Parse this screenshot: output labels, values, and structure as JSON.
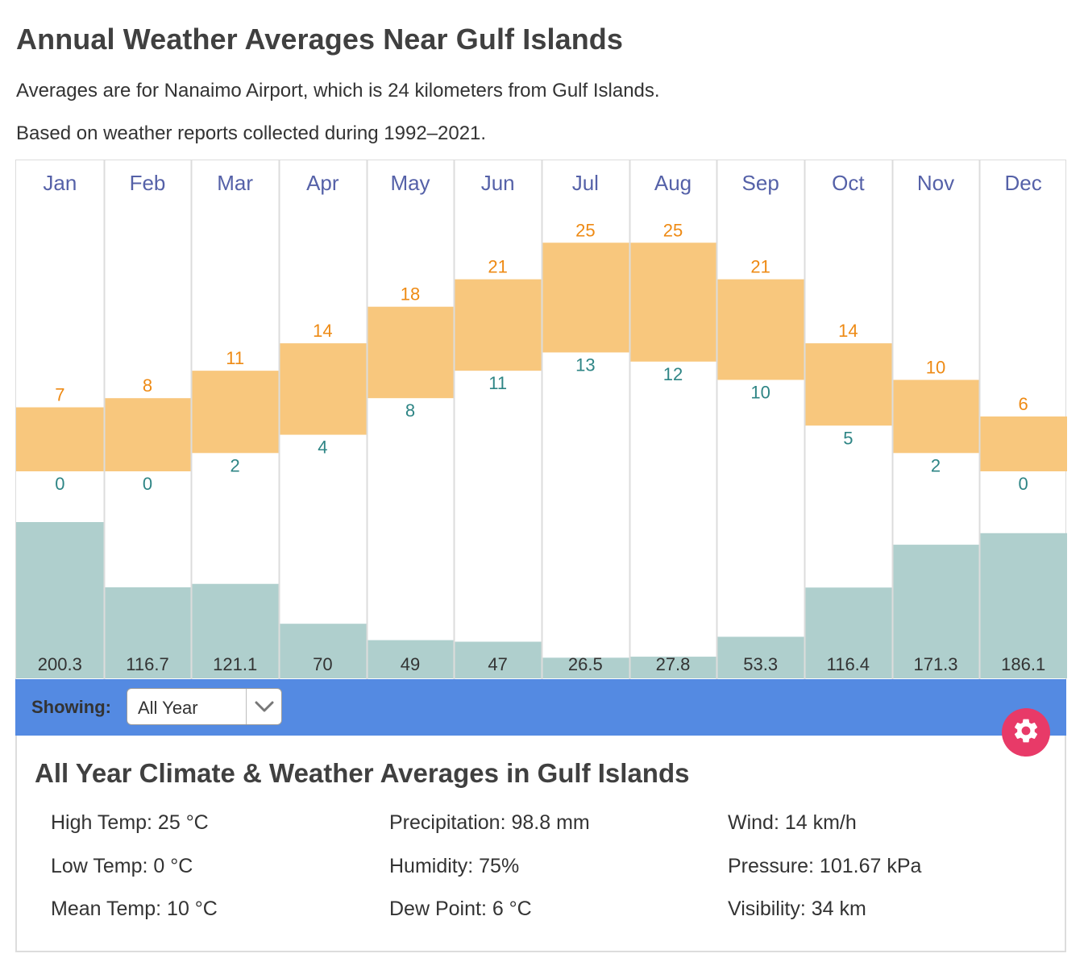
{
  "header": {
    "title": "Annual Weather Averages Near Gulf Islands",
    "subtitle_1": "Averages are for Nanaimo Airport, which is 24 kilometers from Gulf Islands.",
    "subtitle_2": "Based on weather reports collected during 1992–2021."
  },
  "chart_data": {
    "type": "bar",
    "categories": [
      "Jan",
      "Feb",
      "Mar",
      "Apr",
      "May",
      "Jun",
      "Jul",
      "Aug",
      "Sep",
      "Oct",
      "Nov",
      "Dec"
    ],
    "series": [
      {
        "name": "High Temp",
        "values": [
          7,
          8,
          11,
          14,
          18,
          21,
          25,
          25,
          21,
          14,
          10,
          6
        ]
      },
      {
        "name": "Low Temp",
        "values": [
          0,
          0,
          2,
          4,
          8,
          11,
          13,
          12,
          10,
          5,
          2,
          0
        ]
      },
      {
        "name": "Precipitation",
        "values": [
          "200.3",
          "116.7",
          "121.1",
          "70",
          "49",
          "47",
          "26.5",
          "27.8",
          "53.3",
          "116.4",
          "171.3",
          "186.1"
        ]
      }
    ],
    "colors": {
      "temp_bar": "#f8c77d",
      "high_label": "#ee8a14",
      "low_label": "#2e8585",
      "precip_bar": "#afcfcd",
      "month_label": "#5561a8",
      "column_divider": "#dcdcdc"
    }
  },
  "toolbar": {
    "showing_label": "Showing:",
    "select_value": "All Year",
    "select_icon": "chevron-down-icon",
    "gear_icon": "gear-icon",
    "bar_color": "#548ae2",
    "gear_color": "#e83a68"
  },
  "summary": {
    "title": "All Year Climate & Weather Averages in Gulf Islands",
    "stats": [
      "High Temp: 25 °C",
      "Low Temp: 0 °C",
      "Mean Temp: 10 °C",
      "Precipitation: 98.8 mm",
      "Humidity: 75%",
      "Dew Point: 6 °C",
      "Wind: 14 km/h",
      "Pressure: 101.67 kPa",
      "Visibility: 34 km"
    ]
  }
}
